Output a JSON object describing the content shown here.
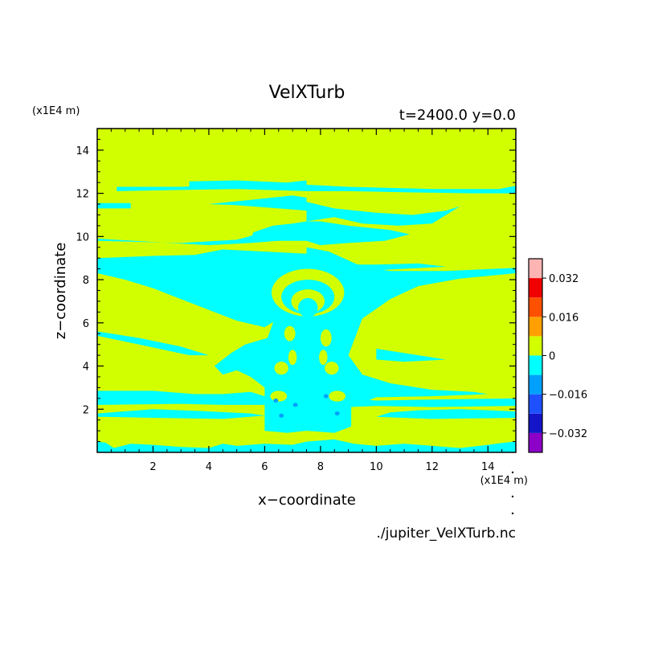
{
  "chart_data": {
    "type": "heatmap",
    "title": "VelXTurb",
    "subtitle": "t=2400.0 y=0.0",
    "xlabel": "x−coordinate",
    "ylabel": "z−coordinate",
    "x_unit": "(x1E4 m)",
    "y_unit": "(x1E4 m)",
    "source_file": "./jupiter_VelXTurb.nc",
    "xlim": [
      0,
      15
    ],
    "ylim": [
      0,
      15
    ],
    "xticks": [
      2,
      4,
      6,
      8,
      10,
      12,
      14
    ],
    "yticks": [
      2,
      4,
      6,
      8,
      10,
      12,
      14
    ],
    "colorbar": {
      "levels": [
        -0.04,
        -0.032,
        -0.024,
        -0.016,
        -0.008,
        0,
        0.008,
        0.016,
        0.024,
        0.032,
        0.04
      ],
      "colors": [
        "#8c00c8",
        "#1414c8",
        "#1e50ff",
        "#00a0ff",
        "#00ffff",
        "#d2ff00",
        "#ffa000",
        "#ff5000",
        "#f00000",
        "#ffb4b4"
      ],
      "tick_values": [
        0.032,
        0.016,
        0,
        -0.016,
        -0.032
      ],
      "tick_labels": [
        "0.032",
        "0.016",
        "0",
        "−0.016",
        "−0.032"
      ]
    },
    "field": {
      "background_range": [
        0,
        0.008
      ],
      "regions_range_negative_small": [
        -0.008,
        0
      ],
      "regions": [
        {
          "band": "near-surface z 0 to 0.5",
          "class": "negative-small"
        },
        {
          "band": "z 2.2 to 2.9",
          "class": "negative-small"
        },
        {
          "band": "central plume x 6 to 9, z 1 to 9",
          "class": "negative-small"
        },
        {
          "band": "wedge x 0 to 7.5, z 6 to 9",
          "class": "negative-small"
        },
        {
          "band": "upper layers z 9.8 to 12.4",
          "class": "negative-small"
        }
      ]
    }
  }
}
